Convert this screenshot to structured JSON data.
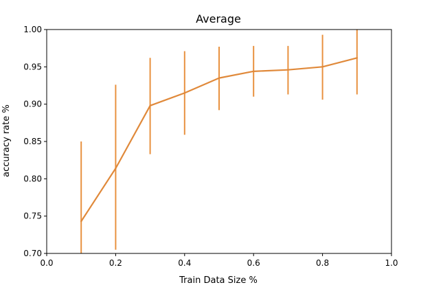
{
  "chart_data": {
    "type": "line",
    "title": "Average",
    "xlabel": "Train Data Size %",
    "ylabel": "accuracy rate %",
    "xlim": [
      0.0,
      1.0
    ],
    "ylim": [
      0.7,
      1.0
    ],
    "x_ticks": [
      "0.0",
      "0.2",
      "0.4",
      "0.6",
      "0.8",
      "1.0"
    ],
    "y_ticks": [
      "0.70",
      "0.75",
      "0.80",
      "0.85",
      "0.90",
      "0.95",
      "1.00"
    ],
    "grid": false,
    "series": [
      {
        "color": "#e8913f",
        "x": [
          0.1,
          0.2,
          0.3,
          0.4,
          0.5,
          0.6,
          0.7,
          0.8,
          0.9
        ],
        "y": [
          0.743,
          0.814,
          0.898,
          0.915,
          0.935,
          0.944,
          0.946,
          0.95,
          0.962
        ],
        "y_low": [
          0.7,
          0.705,
          0.833,
          0.859,
          0.892,
          0.91,
          0.913,
          0.906,
          0.913
        ],
        "y_high": [
          0.85,
          0.926,
          0.962,
          0.971,
          0.977,
          0.978,
          0.978,
          0.993,
          1.0
        ]
      }
    ]
  }
}
